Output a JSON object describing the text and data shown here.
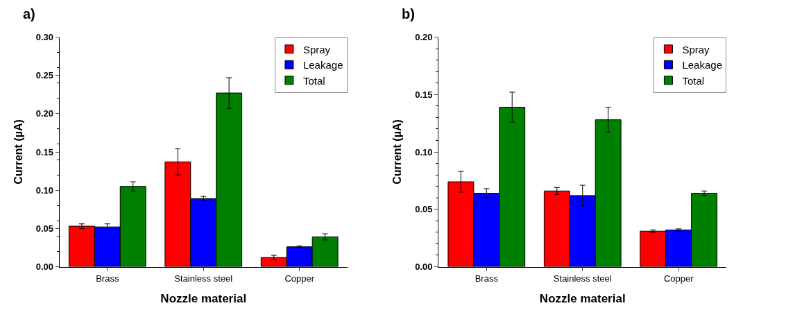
{
  "chart_data": [
    {
      "type": "bar",
      "title": "a)",
      "xlabel": "Nozzle material",
      "ylabel": "Current (µA)",
      "categories": [
        "Brass",
        "Stainless steel",
        "Copper"
      ],
      "ylim": [
        0,
        0.3
      ],
      "yticks": [
        {
          "value": 0,
          "label": "0.00"
        },
        {
          "value": 0.05,
          "label": "0.05"
        },
        {
          "value": 0.1,
          "label": "0.10"
        },
        {
          "value": 0.15,
          "label": "0.15"
        },
        {
          "value": 0.2,
          "label": "0.20"
        },
        {
          "value": 0.25,
          "label": "0.25"
        },
        {
          "value": 0.3,
          "label": "0.30"
        }
      ],
      "legend": "top right",
      "series": [
        {
          "name": "Spray",
          "color": "#ff0000",
          "values": [
            0.053,
            0.137,
            0.012
          ],
          "errors": [
            0.003,
            0.017,
            0.003
          ]
        },
        {
          "name": "Leakage",
          "color": "#0000ff",
          "values": [
            0.052,
            0.089,
            0.026
          ],
          "errors": [
            0.004,
            0.003,
            0.001
          ]
        },
        {
          "name": "Total",
          "color": "#008000",
          "values": [
            0.105,
            0.227,
            0.039
          ],
          "errors": [
            0.006,
            0.02,
            0.004
          ]
        }
      ]
    },
    {
      "type": "bar",
      "title": "b)",
      "xlabel": "Nozzle material",
      "ylabel": "Current (µA)",
      "categories": [
        "Brass",
        "Stainless steel",
        "Copper"
      ],
      "ylim": [
        0,
        0.2
      ],
      "yticks": [
        {
          "value": 0,
          "label": "0.00"
        },
        {
          "value": 0.05,
          "label": "0.05"
        },
        {
          "value": 0.1,
          "label": "0.10"
        },
        {
          "value": 0.15,
          "label": "0.15"
        },
        {
          "value": 0.2,
          "label": "0.20"
        }
      ],
      "legend": "top right",
      "series": [
        {
          "name": "Spray",
          "color": "#ff0000",
          "values": [
            0.074,
            0.066,
            0.031
          ],
          "errors": [
            0.009,
            0.003,
            0.001
          ]
        },
        {
          "name": "Leakage",
          "color": "#0000ff",
          "values": [
            0.064,
            0.062,
            0.032
          ],
          "errors": [
            0.004,
            0.009,
            0.001
          ]
        },
        {
          "name": "Total",
          "color": "#008000",
          "values": [
            0.139,
            0.128,
            0.064
          ],
          "errors": [
            0.013,
            0.011,
            0.002
          ]
        }
      ]
    }
  ]
}
